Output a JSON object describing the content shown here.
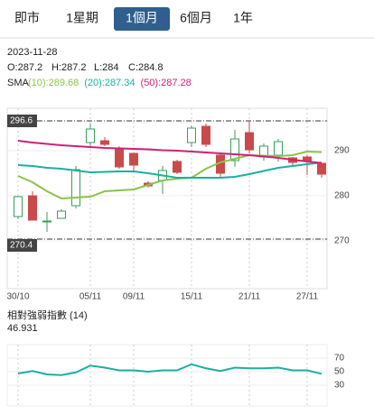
{
  "tabs": [
    "即市",
    "1星期",
    "1個月",
    "6個月",
    "1年"
  ],
  "selected_tab": 2,
  "info": {
    "date": "2023-11-28",
    "open": "O:287.2",
    "high": "H:287.2",
    "low": "L:284",
    "close": "C:284.8"
  },
  "chart_data": [
    {
      "type": "candlestick",
      "legend_title": "SMA",
      "categories": [
        "30/10",
        null,
        null,
        null,
        null,
        "05/11",
        null,
        null,
        "09/11",
        null,
        null,
        null,
        "15/11",
        null,
        null,
        null,
        "21/11",
        null,
        null,
        null,
        "27/11",
        null
      ],
      "open": [
        275.4,
        280,
        274.4,
        275,
        277.8,
        291.8,
        292.2,
        290.4,
        289.4,
        282.8,
        283.4,
        287.6,
        291.8,
        295.4,
        289,
        287.8,
        294,
        288.6,
        289,
        288.4,
        288.6,
        287.2
      ],
      "high": [
        280,
        281,
        276.4,
        277,
        286.6,
        296,
        293,
        291,
        289.6,
        283.2,
        286.6,
        288,
        295.6,
        296,
        289.2,
        294.6,
        296.6,
        291.6,
        292.6,
        288.6,
        289,
        287.2
      ],
      "low": [
        274.8,
        274.6,
        272,
        275,
        277.2,
        290.8,
        291,
        286,
        285.2,
        281.8,
        280.4,
        284.8,
        290.8,
        290.8,
        284.2,
        286.4,
        289.4,
        287.8,
        287.6,
        286.4,
        284.6,
        284
      ],
      "close": [
        279.8,
        274.6,
        274.4,
        276.6,
        285.8,
        294.8,
        291.4,
        286.4,
        286.8,
        282.2,
        285.6,
        285.2,
        295,
        291.4,
        285,
        292.6,
        290.2,
        291,
        292,
        287.4,
        287.6,
        284.8
      ],
      "up_color": "#3a9c5e",
      "down_color": "#c94a4a",
      "series": [
        {
          "name": "(10):289.68",
          "color": "#8bc34a",
          "values": [
            284.4,
            283,
            281,
            279.4,
            279.6,
            279.8,
            281,
            281.2,
            281.4,
            282.4,
            283.4,
            283.8,
            284,
            286,
            287.4,
            288.2,
            289,
            288.9,
            288.8,
            289,
            289.8,
            289.68
          ]
        },
        {
          "name": "(20):287.34",
          "color": "#1ab0a0",
          "values": [
            286.8,
            286.6,
            286.2,
            286,
            285.6,
            285.2,
            285.3,
            285.4,
            285.4,
            285,
            284.5,
            284,
            284,
            284,
            284,
            284.2,
            284.8,
            285.5,
            286.2,
            286.6,
            287,
            287.34
          ]
        },
        {
          "name": "(50):287.28",
          "color": "#cc2277",
          "values": [
            292.2,
            291.8,
            291.5,
            291.2,
            291,
            290.8,
            290.6,
            290.5,
            290.4,
            290.3,
            290.1,
            290,
            289.8,
            289.6,
            289.4,
            289.2,
            289,
            288.7,
            288.4,
            288,
            287.6,
            287.28
          ]
        }
      ],
      "hlines": [
        296.6,
        270.4
      ],
      "ylim": [
        259.4,
        299.4
      ],
      "yticks": [
        270,
        280,
        290
      ],
      "grid": true
    },
    {
      "type": "line",
      "title": "相對強弱指數 (14)",
      "color": "#1ab0a0",
      "values": [
        47.3,
        51,
        46,
        45,
        49,
        59,
        56,
        52,
        52,
        50,
        52,
        52,
        61,
        55,
        51,
        56,
        55,
        55,
        56,
        52,
        52,
        46.931
      ],
      "ylim": [
        0,
        90
      ],
      "yticks": [
        30,
        50,
        70
      ],
      "grid": true
    }
  ]
}
